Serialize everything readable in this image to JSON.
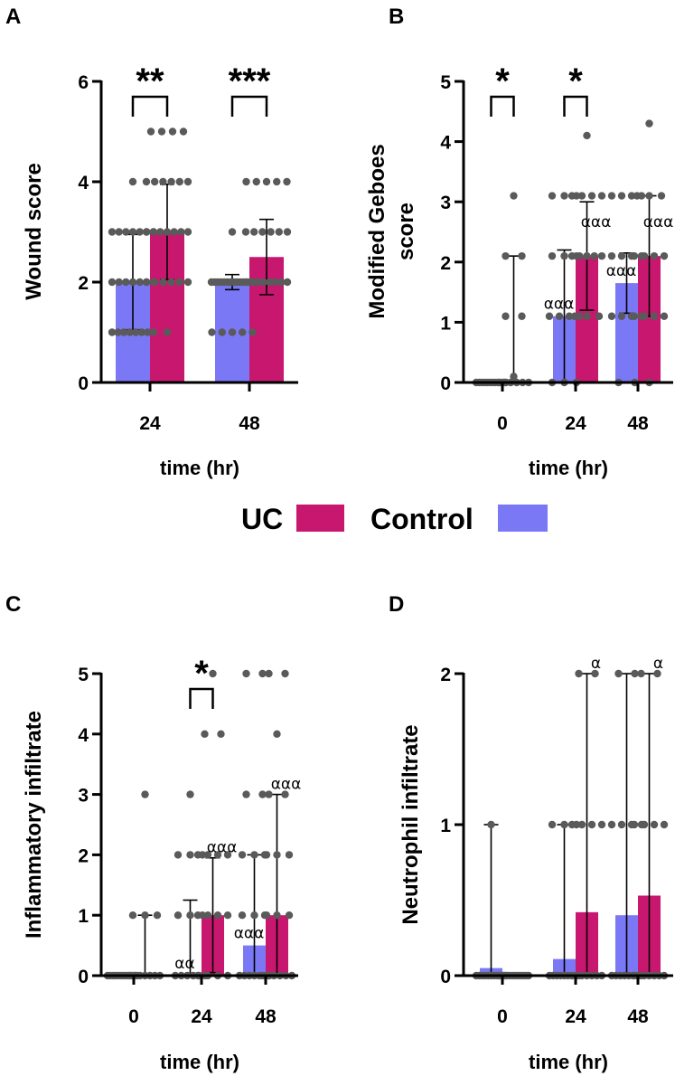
{
  "colors": {
    "uc": "#c8176f",
    "control": "#7b78f6",
    "dot": "#5a5a5a",
    "axis": "#000000"
  },
  "legend": {
    "uc_label": "UC",
    "control_label": "Control"
  },
  "chart_data": [
    {
      "panel": "A",
      "type": "bar",
      "xlabel": "time (hr)",
      "ylabel": "Wound score",
      "ylim": [
        0,
        6
      ],
      "yticks": [
        0,
        2,
        4,
        6
      ],
      "categories": [
        "24",
        "48"
      ],
      "series": [
        {
          "name": "Control",
          "values": [
            2.0,
            2.0
          ],
          "sd": [
            0.95,
            0.15
          ]
        },
        {
          "name": "UC",
          "values": [
            3.0,
            2.5
          ],
          "sd": [
            0.95,
            0.75
          ]
        }
      ],
      "points": [
        {
          "series": "Control",
          "category": "24",
          "values": [
            1,
            1,
            1,
            1,
            1,
            1,
            1,
            1,
            2,
            2,
            2,
            2,
            2,
            2,
            2,
            3,
            3,
            3,
            3,
            3,
            3,
            3,
            4
          ]
        },
        {
          "series": "UC",
          "category": "24",
          "values": [
            1,
            2,
            2,
            2,
            2,
            2,
            2,
            3,
            3,
            3,
            3,
            3,
            3,
            3,
            4,
            4,
            4,
            4,
            4,
            4,
            5,
            5,
            5,
            5
          ]
        },
        {
          "series": "Control",
          "category": "48",
          "values": [
            1,
            1,
            1,
            1,
            1,
            2,
            2,
            2,
            2,
            2,
            2,
            2,
            2,
            2,
            2,
            2,
            2,
            2,
            2,
            3
          ]
        },
        {
          "series": "UC",
          "category": "48",
          "values": [
            2,
            2,
            2,
            2,
            2,
            2,
            2,
            2,
            3,
            3,
            3,
            3,
            3,
            3,
            4,
            4,
            4,
            4,
            4
          ]
        }
      ],
      "significance": [
        {
          "category": "24",
          "label": "**"
        },
        {
          "category": "48",
          "label": "***"
        }
      ],
      "alpha_labels": []
    },
    {
      "panel": "B",
      "type": "bar",
      "xlabel": "time (hr)",
      "ylabel": "Modified Geboes score",
      "ylabel_lines": [
        "Modified Geboes",
        "score"
      ],
      "ylim": [
        0,
        5
      ],
      "yticks": [
        0,
        1,
        2,
        3,
        4,
        5
      ],
      "categories": [
        "0",
        "24",
        "48"
      ],
      "series": [
        {
          "name": "Control",
          "values": [
            0.0,
            1.1,
            1.65
          ],
          "sd": [
            0.0,
            1.1,
            0.5
          ]
        },
        {
          "name": "UC",
          "values": [
            0.0,
            2.1,
            2.1
          ],
          "sd": [
            2.1,
            0.9,
            1.0
          ]
        }
      ],
      "points": [
        {
          "series": "Control",
          "category": "0",
          "values": [
            0,
            0,
            0,
            0,
            0,
            0,
            0,
            0,
            0,
            0,
            0,
            0
          ]
        },
        {
          "series": "UC",
          "category": "0",
          "values": [
            0,
            0,
            0,
            0,
            0,
            0,
            0.1,
            1.1,
            1.1,
            2.1,
            2.1,
            3.1
          ]
        },
        {
          "series": "Control",
          "category": "24",
          "values": [
            0,
            0,
            0,
            1.1,
            1.1,
            1.1,
            1.1,
            2.1,
            2.1,
            2.1,
            3.1,
            3.1,
            3.1
          ]
        },
        {
          "series": "UC",
          "category": "24",
          "values": [
            1.1,
            1.1,
            1.1,
            2.1,
            2.1,
            2.1,
            2.1,
            2.1,
            3.1,
            3.1,
            3.1,
            3.1,
            4.1
          ]
        },
        {
          "series": "Control",
          "category": "48",
          "values": [
            0,
            0,
            1.1,
            1.1,
            1.1,
            1.1,
            2.1,
            2.1,
            2.1,
            2.1,
            3.1,
            3.1,
            3.1,
            3.1
          ]
        },
        {
          "series": "UC",
          "category": "48",
          "values": [
            0,
            1.1,
            1.1,
            1.1,
            1.1,
            2.1,
            2.1,
            2.1,
            2.1,
            3.1,
            3.1,
            3.1,
            4.3
          ]
        }
      ],
      "significance": [
        {
          "category": "0",
          "label": "*"
        },
        {
          "category": "24",
          "label": "*"
        }
      ],
      "alpha_labels": [
        {
          "series": "Control",
          "category": "24",
          "label": "ααα"
        },
        {
          "series": "UC",
          "category": "24",
          "label": "ααα"
        },
        {
          "series": "Control",
          "category": "48",
          "label": "ααα"
        },
        {
          "series": "UC",
          "category": "48",
          "label": "ααα"
        }
      ]
    },
    {
      "panel": "C",
      "type": "bar",
      "xlabel": "time (hr)",
      "ylabel": "Inflammatory infiltrate",
      "ylim": [
        0,
        5
      ],
      "yticks": [
        0,
        1,
        2,
        3,
        4,
        5
      ],
      "categories": [
        "0",
        "24",
        "48"
      ],
      "series": [
        {
          "name": "Control",
          "values": [
            0.0,
            0.0,
            0.5
          ],
          "sd": [
            0.0,
            1.25,
            1.5
          ]
        },
        {
          "name": "UC",
          "values": [
            0.0,
            1.0,
            1.0
          ],
          "sd": [
            1.0,
            0.95,
            2.0
          ]
        }
      ],
      "points": [
        {
          "series": "Control",
          "category": "0",
          "values": [
            0,
            0,
            0,
            0,
            0,
            0,
            0,
            0,
            0,
            0,
            0,
            0
          ]
        },
        {
          "series": "UC",
          "category": "0",
          "values": [
            0,
            0,
            0,
            0,
            0,
            0,
            0,
            1,
            1,
            1,
            3
          ]
        },
        {
          "series": "Control",
          "category": "24",
          "values": [
            0,
            0,
            0,
            0,
            0,
            0,
            1,
            1,
            1,
            2,
            2,
            2,
            3
          ]
        },
        {
          "series": "UC",
          "category": "24",
          "values": [
            0,
            0,
            0,
            0,
            1,
            1,
            1,
            1,
            2,
            2,
            2,
            2,
            4,
            4,
            5
          ]
        },
        {
          "series": "Control",
          "category": "48",
          "values": [
            0,
            0,
            0,
            0,
            0,
            0,
            0,
            1,
            1,
            1,
            2,
            2,
            2,
            3,
            3,
            5,
            5
          ]
        },
        {
          "series": "UC",
          "category": "48",
          "values": [
            0,
            0,
            0,
            0,
            0,
            0,
            1,
            1,
            1,
            2,
            2,
            2,
            3,
            3,
            4,
            5,
            5
          ]
        }
      ],
      "significance": [
        {
          "category": "24",
          "label": "*"
        }
      ],
      "alpha_labels": [
        {
          "series": "Control",
          "category": "24",
          "label": "αα"
        },
        {
          "series": "UC",
          "category": "24",
          "label": "ααα"
        },
        {
          "series": "Control",
          "category": "48",
          "label": "ααα"
        },
        {
          "series": "UC",
          "category": "48",
          "label": "ααα"
        }
      ]
    },
    {
      "panel": "D",
      "type": "bar",
      "xlabel": "time (hr)",
      "ylabel": "Neutrophil infiltrate",
      "ylim": [
        0,
        2
      ],
      "yticks": [
        0,
        1,
        2
      ],
      "categories": [
        "0",
        "24",
        "48"
      ],
      "series": [
        {
          "name": "Control",
          "values": [
            0.05,
            0.11,
            0.4
          ],
          "sd": [
            0.95,
            0.89,
            1.6
          ]
        },
        {
          "name": "UC",
          "values": [
            0.0,
            0.42,
            0.53
          ],
          "sd": [
            0.0,
            1.58,
            1.47
          ]
        }
      ],
      "points": [
        {
          "series": "Control",
          "category": "0",
          "values": [
            0,
            0,
            0,
            0,
            0,
            0,
            0,
            0,
            0,
            0,
            0,
            1
          ]
        },
        {
          "series": "UC",
          "category": "0",
          "values": [
            0,
            0,
            0,
            0,
            0,
            0,
            0,
            0,
            0,
            0,
            0,
            0
          ]
        },
        {
          "series": "Control",
          "category": "24",
          "values": [
            0,
            0,
            0,
            0,
            0,
            0,
            0,
            0,
            0,
            1,
            1,
            1
          ]
        },
        {
          "series": "UC",
          "category": "24",
          "values": [
            0,
            0,
            0,
            0,
            0,
            0,
            0,
            1,
            1,
            1,
            1,
            2,
            2
          ]
        },
        {
          "series": "Control",
          "category": "48",
          "values": [
            0,
            0,
            0,
            0,
            0,
            0,
            0,
            0,
            1,
            1,
            1,
            1,
            2,
            2
          ]
        },
        {
          "series": "UC",
          "category": "48",
          "values": [
            0,
            0,
            0,
            0,
            0,
            0,
            0,
            1,
            1,
            1,
            1,
            2,
            2
          ]
        }
      ],
      "significance": [],
      "alpha_labels": [
        {
          "series": "UC",
          "category": "24",
          "label": "α"
        },
        {
          "series": "UC",
          "category": "48",
          "label": "α"
        }
      ]
    }
  ]
}
